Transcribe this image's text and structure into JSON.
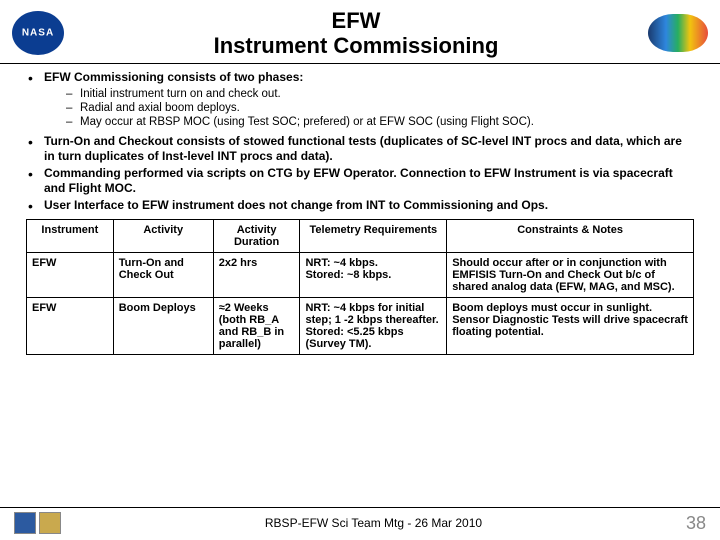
{
  "header": {
    "title_line1": "EFW",
    "title_line2": "Instrument Commissioning"
  },
  "bullets": [
    {
      "text": "EFW Commissioning consists of two phases:",
      "bold": true,
      "sub": [
        "Initial instrument turn on and check out.",
        "Radial and axial boom deploys.",
        "May occur at RBSP MOC (using Test SOC; prefered) or at EFW SOC (using Flight SOC)."
      ]
    },
    {
      "text": "Turn-On and Checkout consists of stowed functional tests (duplicates of SC-level  INT procs and data, which are in turn duplicates of Inst-level INT procs and data).",
      "bold": true
    },
    {
      "text": "Commanding performed via scripts on CTG by EFW Operator.  Connection to EFW Instrument is via spacecraft and Flight MOC.",
      "bold": true
    },
    {
      "text": "User Interface to EFW instrument does not change from INT to Commissioning and Ops.",
      "bold": true
    }
  ],
  "table": {
    "headers": [
      "Instrument",
      "Activity",
      "Activity Duration",
      "Telemetry Requirements",
      "Constraints & Notes"
    ],
    "rows": [
      {
        "instrument": "EFW",
        "activity": "Turn-On and Check Out",
        "duration": "2x2 hrs",
        "telemetry": "NRT: ~4 kbps.\nStored: ~8 kbps.",
        "constraints": "Should occur after or in conjunction with EMFISIS Turn-On and Check Out b/c of shared analog data (EFW, MAG, and MSC)."
      },
      {
        "instrument": "EFW",
        "activity": "Boom Deploys",
        "duration": "≈2 Weeks (both RB_A and RB_B in parallel)",
        "telemetry": "NRT: ~4 kbps for initial step; 1 -2 kbps thereafter.\nStored: <5.25 kbps (Survey TM).",
        "constraints": "Boom deploys must occur in sunlight.\nSensor Diagnostic Tests will drive spacecraft floating potential."
      }
    ]
  },
  "footer": {
    "text": "RBSP-EFW Sci Team Mtg - 26 Mar 2010",
    "page": "38"
  }
}
